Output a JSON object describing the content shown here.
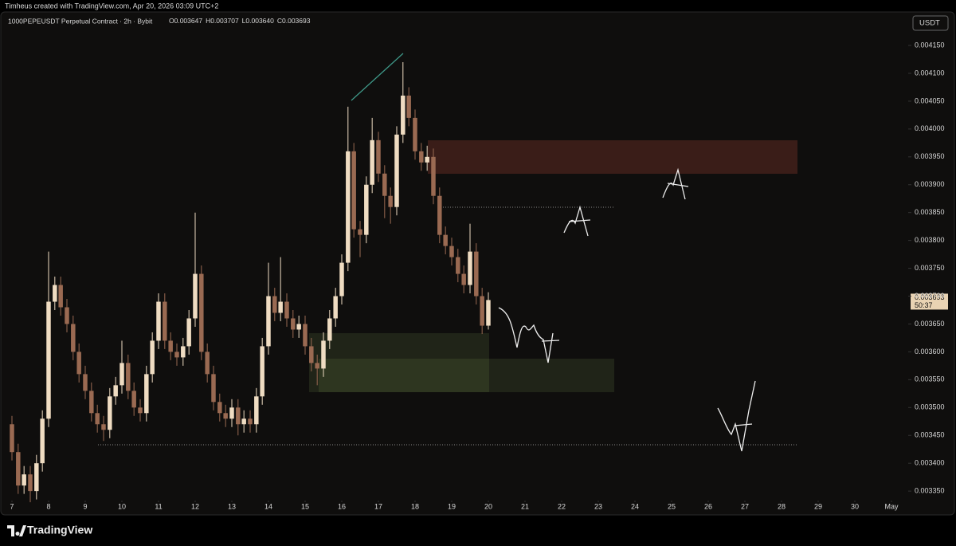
{
  "header": {
    "credit": "Timheus created with TradingView.com, Apr 20, 2026 03:09 UTC+2",
    "logo": "TradingView"
  },
  "chart_data": {
    "type": "candlestick",
    "title": "1000PEPEUSDT Perpetual Contract · 2h · Bybit",
    "ohlc_text": [
      "O0.003647",
      "H0.003707",
      "L0.003640",
      "C0.003693"
    ],
    "currency": "USDT",
    "last_price_label": "0.003693",
    "countdown": "50:37",
    "up_color": "#efdcc2",
    "down_color": "#9a6a52",
    "x": [
      7,
      7.17,
      7.33,
      7.5,
      7.67,
      7.83,
      8,
      8.17,
      8.33,
      8.5,
      8.67,
      8.83,
      9,
      9.17,
      9.33,
      9.5,
      9.67,
      9.83,
      10,
      10.17,
      10.33,
      10.5,
      10.67,
      10.83,
      11,
      11.17,
      11.33,
      11.5,
      11.67,
      11.83,
      12,
      12.17,
      12.33,
      12.5,
      12.67,
      12.83,
      13,
      13.17,
      13.33,
      13.5,
      13.67,
      13.83,
      14,
      14.17,
      14.33,
      14.5,
      14.67,
      14.83,
      15,
      15.17,
      15.33,
      15.5,
      15.67,
      15.83,
      16,
      16.17,
      16.33,
      16.5,
      16.67,
      16.83,
      17,
      17.17,
      17.33,
      17.5,
      17.67,
      17.83,
      18,
      18.17,
      18.33,
      18.5,
      18.67,
      18.83,
      19,
      19.17,
      19.33,
      19.5,
      19.67,
      19.83,
      20
    ],
    "open": [
      0.00347,
      0.00342,
      0.00336,
      0.00338,
      0.00335,
      0.0034,
      0.00348,
      0.00369,
      0.00372,
      0.00368,
      0.00365,
      0.0036,
      0.00356,
      0.00353,
      0.00349,
      0.00347,
      0.00346,
      0.00352,
      0.00354,
      0.00358,
      0.00353,
      0.0035,
      0.00349,
      0.00356,
      0.00362,
      0.00369,
      0.00362,
      0.0036,
      0.00359,
      0.00361,
      0.00366,
      0.00374,
      0.0036,
      0.00356,
      0.00351,
      0.00349,
      0.00348,
      0.0035,
      0.00347,
      0.00348,
      0.00347,
      0.00352,
      0.00361,
      0.0037,
      0.00367,
      0.00369,
      0.00366,
      0.00364,
      0.00365,
      0.00361,
      0.00358,
      0.00357,
      0.00362,
      0.00366,
      0.0037,
      0.00376,
      0.00396,
      0.00382,
      0.00381,
      0.0039,
      0.00398,
      0.00392,
      0.00388,
      0.00386,
      0.00399,
      0.00406,
      0.00402,
      0.00396,
      0.00394,
      0.00395,
      0.00388,
      0.00381,
      0.00379,
      0.00377,
      0.00374,
      0.00372,
      0.00378,
      0.0037,
      0.003647
    ],
    "high": [
      0.003485,
      0.003435,
      0.003395,
      0.003395,
      0.003415,
      0.003495,
      0.00378,
      0.003735,
      0.003735,
      0.003695,
      0.003665,
      0.003615,
      0.003575,
      0.003545,
      0.003505,
      0.003485,
      0.003535,
      0.003555,
      0.00362,
      0.003595,
      0.003545,
      0.003515,
      0.003575,
      0.003635,
      0.003705,
      0.003705,
      0.003635,
      0.003615,
      0.003625,
      0.003675,
      0.00385,
      0.003755,
      0.003615,
      0.003575,
      0.003525,
      0.003505,
      0.003515,
      0.003515,
      0.003495,
      0.003495,
      0.003535,
      0.003625,
      0.00376,
      0.003715,
      0.00377,
      0.003705,
      0.003675,
      0.003665,
      0.003665,
      0.003625,
      0.003595,
      0.003635,
      0.003675,
      0.003715,
      0.003775,
      0.00404,
      0.003975,
      0.003835,
      0.003915,
      0.00402,
      0.003995,
      0.003935,
      0.003895,
      0.004005,
      0.00412,
      0.004075,
      0.004035,
      0.003975,
      0.00397,
      0.003965,
      0.003895,
      0.003825,
      0.003805,
      0.003785,
      0.003755,
      0.00383,
      0.003795,
      0.003715,
      0.003707
    ],
    "low": [
      0.003405,
      0.003345,
      0.003345,
      0.00333,
      0.003335,
      0.003385,
      0.003465,
      0.003675,
      0.003665,
      0.003635,
      0.003585,
      0.003545,
      0.003515,
      0.003475,
      0.003455,
      0.00344,
      0.003445,
      0.003505,
      0.003525,
      0.003515,
      0.003485,
      0.003475,
      0.003475,
      0.003545,
      0.003605,
      0.003605,
      0.003585,
      0.003575,
      0.003575,
      0.003595,
      0.003645,
      0.003585,
      0.003545,
      0.003495,
      0.003475,
      0.003465,
      0.003465,
      0.00345,
      0.003455,
      0.003455,
      0.003455,
      0.003505,
      0.003595,
      0.003655,
      0.003655,
      0.003645,
      0.003625,
      0.003625,
      0.003595,
      0.003565,
      0.00354,
      0.003555,
      0.003605,
      0.003645,
      0.003685,
      0.003745,
      0.003805,
      0.00377,
      0.003795,
      0.003885,
      0.003905,
      0.00384,
      0.00383,
      0.003845,
      0.003975,
      0.004005,
      0.003945,
      0.003925,
      0.003925,
      0.003865,
      0.003795,
      0.003775,
      0.003755,
      0.003725,
      0.003705,
      0.003705,
      0.003685,
      0.003632,
      0.00364
    ],
    "close": [
      0.00342,
      0.00336,
      0.00338,
      0.00335,
      0.0034,
      0.00348,
      0.00369,
      0.00372,
      0.00368,
      0.00365,
      0.0036,
      0.00356,
      0.00353,
      0.00349,
      0.00347,
      0.00346,
      0.00352,
      0.00354,
      0.00358,
      0.00353,
      0.0035,
      0.00349,
      0.00356,
      0.00362,
      0.00369,
      0.00362,
      0.0036,
      0.00359,
      0.00361,
      0.00366,
      0.00374,
      0.0036,
      0.00356,
      0.00351,
      0.00349,
      0.00348,
      0.0035,
      0.00347,
      0.00348,
      0.00347,
      0.00352,
      0.00361,
      0.0037,
      0.00367,
      0.00369,
      0.00366,
      0.00364,
      0.00365,
      0.00361,
      0.00358,
      0.00357,
      0.00362,
      0.00366,
      0.0037,
      0.00376,
      0.00396,
      0.00382,
      0.00381,
      0.0039,
      0.00398,
      0.00392,
      0.00388,
      0.00386,
      0.00399,
      0.00406,
      0.00402,
      0.00396,
      0.00394,
      0.00395,
      0.00388,
      0.00381,
      0.00379,
      0.00377,
      0.00374,
      0.00372,
      0.00378,
      0.0037,
      0.003647,
      0.003693
    ],
    "xlim": [
      6.674,
      31.457
    ],
    "ylim": [
      0.003333,
      0.004203
    ],
    "xticks": [
      7,
      8,
      9,
      10,
      11,
      12,
      13,
      14,
      15,
      16,
      17,
      18,
      19,
      20,
      21,
      22,
      23,
      24,
      25,
      26,
      27,
      28,
      29,
      30,
      {
        "value": 31,
        "label": "May"
      }
    ],
    "yticks": [
      {
        "value": 0.00335,
        "label": "0.003350"
      },
      {
        "value": 0.0034,
        "label": "0.003400"
      },
      {
        "value": 0.00345,
        "label": "0.003450"
      },
      {
        "value": 0.0035,
        "label": "0.003500"
      },
      {
        "value": 0.00355,
        "label": "0.003550"
      },
      {
        "value": 0.0036,
        "label": "0.003600"
      },
      {
        "value": 0.00365,
        "label": "0.003650"
      },
      {
        "value": 0.0037,
        "label": "0.003700"
      },
      {
        "value": 0.00375,
        "label": "0.003750"
      },
      {
        "value": 0.0038,
        "label": "0.003800"
      },
      {
        "value": 0.00385,
        "label": "0.003850"
      },
      {
        "value": 0.0039,
        "label": "0.003900"
      },
      {
        "value": 0.00395,
        "label": "0.003950"
      },
      {
        "value": 0.004,
        "label": "0.004000"
      },
      {
        "value": 0.00405,
        "label": "0.004050"
      },
      {
        "value": 0.0041,
        "label": "0.004100"
      },
      {
        "value": 0.00415,
        "label": "0.004150"
      }
    ],
    "grid": false
  }
}
